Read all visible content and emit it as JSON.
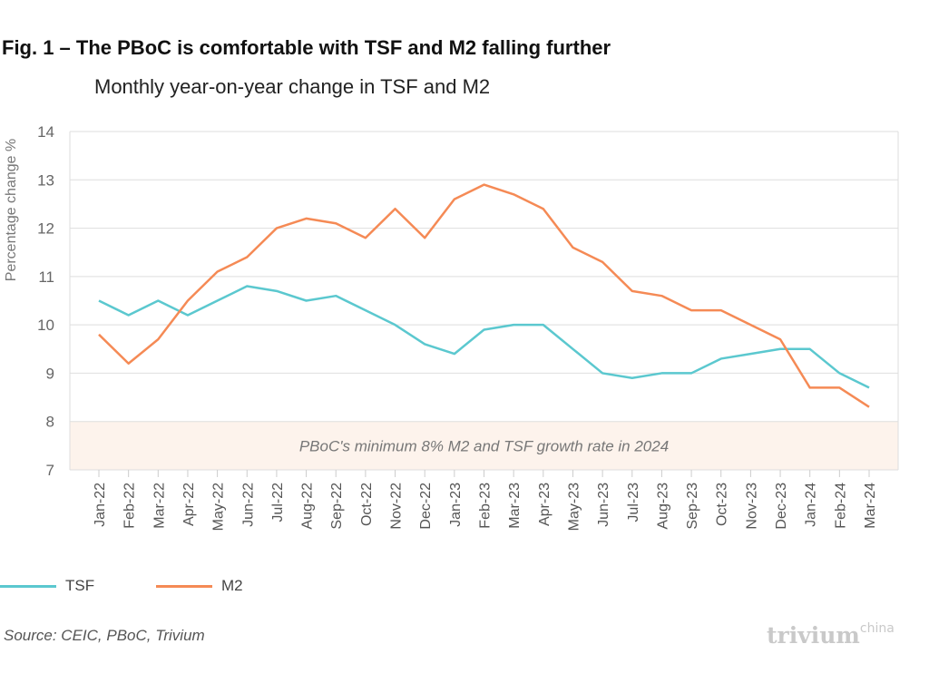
{
  "title": "Fig. 1 – The PBoC is comfortable with TSF and M2 falling further",
  "subtitle": "Monthly year-on-year change in TSF and M2",
  "source": "Source: CEIC, PBoC, Trivium",
  "logo": {
    "main": "trivium",
    "sup": "china"
  },
  "chart_data": {
    "type": "line",
    "ylabel": "Percentage change %",
    "ylim": [
      7,
      14
    ],
    "yticks": [
      7,
      8,
      9,
      10,
      11,
      12,
      13,
      14
    ],
    "grid": true,
    "legend": "bottom-left",
    "categories": [
      "Jan-22",
      "Feb-22",
      "Mar-22",
      "Apr-22",
      "May-22",
      "Jun-22",
      "Jul-22",
      "Aug-22",
      "Sep-22",
      "Oct-22",
      "Nov-22",
      "Dec-22",
      "Jan-23",
      "Feb-23",
      "Mar-23",
      "Apr-23",
      "May-23",
      "Jun-23",
      "Jul-23",
      "Aug-23",
      "Sep-23",
      "Oct-23",
      "Nov-23",
      "Dec-23",
      "Jan-24",
      "Feb-24",
      "Mar-24"
    ],
    "series": [
      {
        "name": "TSF",
        "color": "#5bc8cf",
        "values": [
          10.5,
          10.2,
          10.5,
          10.2,
          10.5,
          10.8,
          10.7,
          10.5,
          10.6,
          10.3,
          10.0,
          9.6,
          9.4,
          9.9,
          10.0,
          10.0,
          9.5,
          9.0,
          8.9,
          9.0,
          9.0,
          9.3,
          9.4,
          9.5,
          9.5,
          9.0,
          8.7
        ]
      },
      {
        "name": "M2",
        "color": "#f58a55",
        "values": [
          9.8,
          9.2,
          9.7,
          10.5,
          11.1,
          11.4,
          12.0,
          12.2,
          12.1,
          11.8,
          12.4,
          11.8,
          12.6,
          12.9,
          12.7,
          12.4,
          11.6,
          11.3,
          10.7,
          10.6,
          10.3,
          10.3,
          10.0,
          9.7,
          8.7,
          8.7,
          8.3
        ]
      }
    ],
    "band": {
      "from": 7,
      "to": 8,
      "label": "PBoC's minimum 8% M2 and TSF growth rate in 2024",
      "color": "#fdf3ec"
    }
  }
}
